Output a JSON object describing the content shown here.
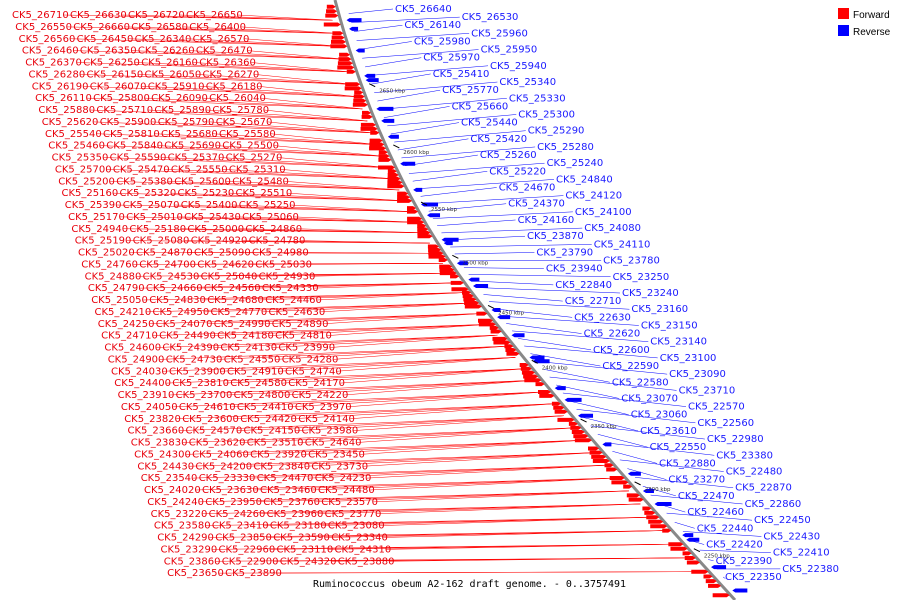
{
  "caption": "Ruminococcus obeum A2-162 draft genome. - 0..3757491",
  "legend": {
    "forward_label": "Forward",
    "reverse_label": "Reverse",
    "forward_color": "#ff0000",
    "reverse_color": "#0000ff"
  },
  "scale_ticks": [
    "2650 kbp",
    "2600 kbp",
    "2550 kbp",
    "2500 kbp",
    "2450 kbp",
    "2400 kbp",
    "2350 kbp",
    "2300 kbp",
    "2250 kbp"
  ],
  "forward_labels": [
    "CK5_26710",
    "CK5_26630",
    "CK5_26720",
    "CK5_26650",
    "CK5_26550",
    "CK5_26660",
    "CK5_26580",
    "CK5_26400",
    "CK5_26560",
    "CK5_26450",
    "CK5_26340",
    "CK5_26570",
    "CK5_26460",
    "CK5_26350",
    "CK5_26260",
    "CK5_26470",
    "CK5_26370",
    "CK5_26250",
    "CK5_26160",
    "CK5_26360",
    "CK5_26280",
    "CK5_26150",
    "CK5_26050",
    "CK5_26270",
    "CK5_26190",
    "CK5_26070",
    "CK5_25910",
    "CK5_26180",
    "CK5_26110",
    "CK5_25800",
    "CK5_26090",
    "CK5_26040",
    "CK5_25880",
    "CK5_25710",
    "CK5_25890",
    "CK5_25780",
    "CK5_25620",
    "CK5_25900",
    "CK5_25790",
    "CK5_25670",
    "CK5_25540",
    "CK5_25810",
    "CK5_25680",
    "CK5_25580",
    "CK5_25460",
    "CK5_25840",
    "CK5_25690",
    "CK5_25500",
    "CK5_25350",
    "CK5_25590",
    "CK5_25370",
    "CK5_25270",
    "CK5_25700",
    "CK5_25470",
    "CK5_25550",
    "CK5_25310",
    "CK5_25200",
    "CK5_25380",
    "CK5_25600",
    "CK5_25480",
    "CK5_25160",
    "CK5_25320",
    "CK5_25230",
    "CK5_25510",
    "CK5_25390",
    "CK5_25070",
    "CK5_25400",
    "CK5_25250",
    "CK5_25170",
    "CK5_25010",
    "CK5_25430",
    "CK5_25060",
    "CK5_24940",
    "CK5_25180",
    "CK5_25000",
    "CK5_24860",
    "CK5_25190",
    "CK5_25080",
    "CK5_24920",
    "CK5_24780",
    "CK5_25020",
    "CK5_24870",
    "CK5_25090",
    "CK5_24980",
    "CK5_24760",
    "CK5_24700",
    "CK5_24620",
    "CK5_25030",
    "CK5_24880",
    "CK5_24530",
    "CK5_25040",
    "CK5_24930",
    "CK5_24790",
    "CK5_24660",
    "CK5_24560",
    "CK5_24330",
    "CK5_25050",
    "CK5_24830",
    "CK5_24680",
    "CK5_24460",
    "CK5_24210",
    "CK5_24950",
    "CK5_24770",
    "CK5_24630",
    "CK5_24250",
    "CK5_24070",
    "CK5_24990",
    "CK5_24890",
    "CK5_24710",
    "CK5_24490",
    "CK5_24180",
    "CK5_24810",
    "CK5_24600",
    "CK5_24390",
    "CK5_24130",
    "CK5_23990",
    "CK5_24900",
    "CK5_24730",
    "CK5_24550",
    "CK5_24280",
    "CK5_24030",
    "CK5_23900",
    "CK5_24910",
    "CK5_24740",
    "CK5_24400",
    "CK5_23810",
    "CK5_24580",
    "CK5_24170",
    "CK5_23910",
    "CK5_23700",
    "CK5_24800",
    "CK5_24220",
    "CK5_24050",
    "CK5_24610",
    "CK5_24410",
    "CK5_23970",
    "CK5_23820",
    "CK5_23600",
    "CK5_24420",
    "CK5_24140",
    "CK5_23660",
    "CK5_24570",
    "CK5_24150",
    "CK5_23980",
    "CK5_23830",
    "CK5_23620",
    "CK5_23510",
    "CK5_24640",
    "CK5_24300",
    "CK5_24060",
    "CK5_23920",
    "CK5_23450",
    "CK5_24430",
    "CK5_24200",
    "CK5_23840",
    "CK5_23730",
    "CK5_23540",
    "CK5_23330",
    "CK5_24470",
    "CK5_24230",
    "CK5_24020",
    "CK5_23630",
    "CK5_23460",
    "CK5_24480",
    "CK5_24240",
    "CK5_23950",
    "CK5_23760",
    "CK5_23570",
    "CK5_23220",
    "CK5_24260",
    "CK5_23960",
    "CK5_23770",
    "CK5_23580",
    "CK5_23410",
    "CK5_23180",
    "CK5_23080",
    "CK5_24290",
    "CK5_23850",
    "CK5_23590",
    "CK5_23340",
    "CK5_23290",
    "CK5_22960",
    "CK5_23110",
    "CK5_24310",
    "CK5_23860",
    "CK5_22900",
    "CK5_24320",
    "CK5_23880",
    "CK5_23650",
    "CK5_23890"
  ],
  "reverse_labels": [
    "CK5_26640",
    "CK5_26530",
    "CK5_26140",
    "CK5_25960",
    "CK5_25980",
    "CK5_25950",
    "CK5_25970",
    "CK5_25940",
    "CK5_25410",
    "CK5_25340",
    "CK5_25770",
    "CK5_25330",
    "CK5_25660",
    "CK5_25300",
    "CK5_25440",
    "CK5_25290",
    "CK5_25420",
    "CK5_25280",
    "CK5_25260",
    "CK5_25240",
    "CK5_25220",
    "CK5_24840",
    "CK5_24670",
    "CK5_24120",
    "CK5_24370",
    "CK5_24100",
    "CK5_24160",
    "CK5_24080",
    "CK5_23870",
    "CK5_24110",
    "CK5_23790",
    "CK5_23780",
    "CK5_23940",
    "CK5_23250",
    "CK5_22840",
    "CK5_23240",
    "CK5_22710",
    "CK5_23160",
    "CK5_22630",
    "CK5_23150",
    "CK5_22620",
    "CK5_23140",
    "CK5_22600",
    "CK5_23100",
    "CK5_22590",
    "CK5_23090",
    "CK5_22580",
    "CK5_23710",
    "CK5_23070",
    "CK5_22570",
    "CK5_23060",
    "CK5_22560",
    "CK5_23610",
    "CK5_22980",
    "CK5_22550",
    "CK5_23380",
    "CK5_22880",
    "CK5_22480",
    "CK5_23270",
    "CK5_22870",
    "CK5_22470",
    "CK5_22860",
    "CK5_22460",
    "CK5_22450",
    "CK5_22440",
    "CK5_22430",
    "CK5_22420",
    "CK5_22410",
    "CK5_22390",
    "CK5_22380",
    "CK5_22350"
  ]
}
